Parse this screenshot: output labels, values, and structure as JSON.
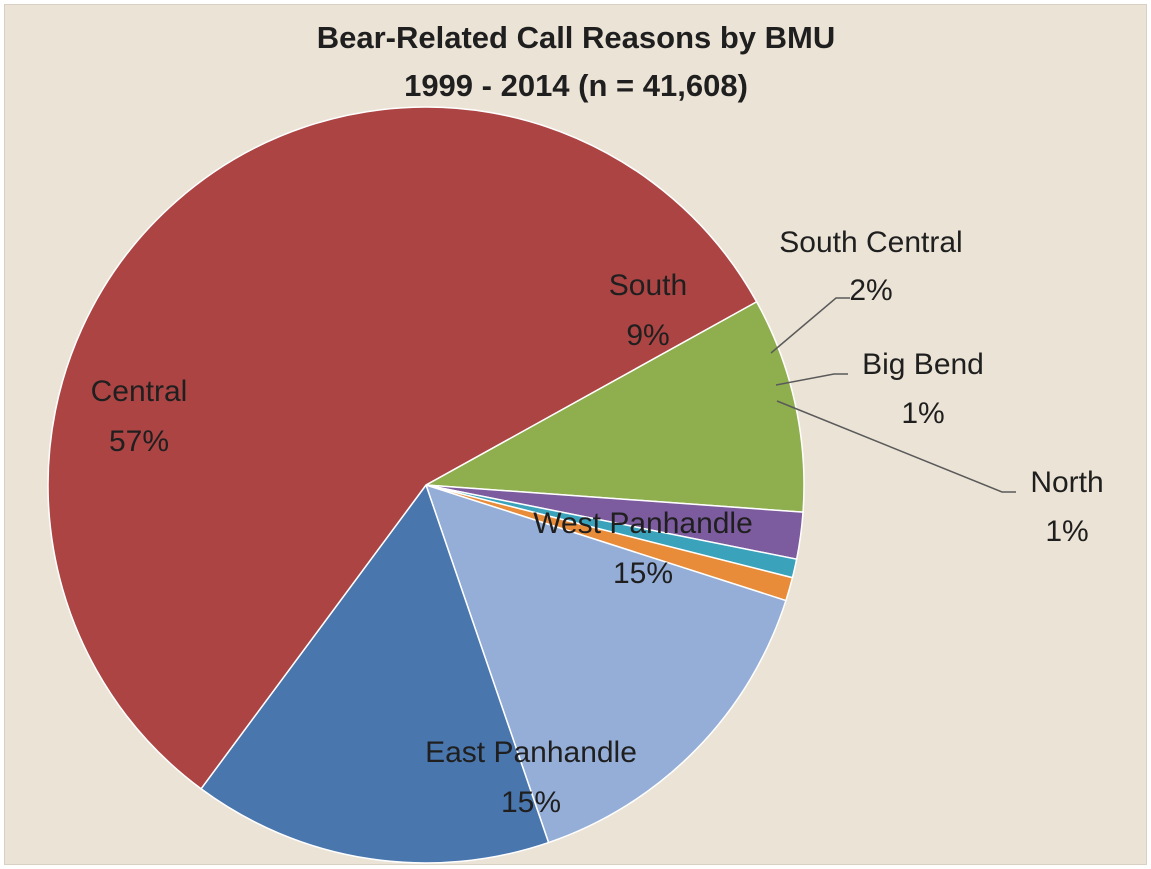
{
  "chart_data": {
    "type": "pie",
    "title": "Bear-Related Call Reasons by BMU",
    "subtitle": "1999 - 2014 (n = 41,608)",
    "slices": [
      {
        "name": "South",
        "label": "South",
        "pct_label": "9%",
        "value": 9.2,
        "color": "#8fae4e"
      },
      {
        "name": "South Central",
        "label": "South Central",
        "pct_label": "2%",
        "value": 2.0,
        "color": "#7c5b9e"
      },
      {
        "name": "Big Bend",
        "label": "Big Bend",
        "pct_label": "1%",
        "value": 0.8,
        "color": "#3aa3bb"
      },
      {
        "name": "North",
        "label": "North",
        "pct_label": "1%",
        "value": 1.0,
        "color": "#e98c3a"
      },
      {
        "name": "West Panhandle",
        "label": "West Panhandle",
        "pct_label": "15%",
        "value": 14.8,
        "color": "#94aed8"
      },
      {
        "name": "East Panhandle",
        "label": "East Panhandle",
        "pct_label": "15%",
        "value": 15.4,
        "color": "#4a76ae"
      },
      {
        "name": "Central",
        "label": "Central",
        "pct_label": "57%",
        "value": 56.8,
        "color": "#ab4443"
      }
    ],
    "legend": "none",
    "label_style": "category name and percentage",
    "external_labels": [
      "South Central",
      "Big Bend",
      "North"
    ]
  }
}
